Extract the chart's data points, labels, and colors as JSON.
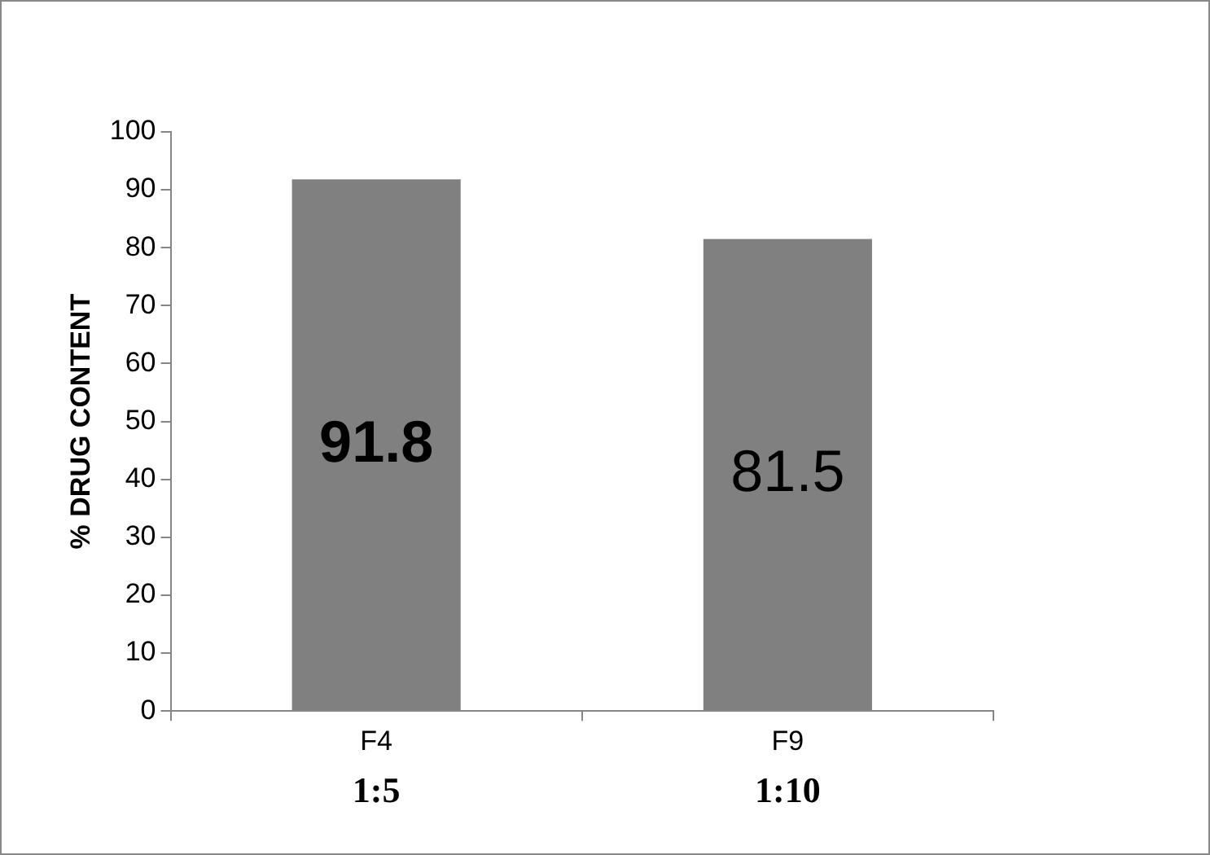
{
  "chart_data": {
    "type": "bar",
    "ylabel": "% DRUG CONTENT",
    "categories": [
      "F4",
      "F9"
    ],
    "values": [
      91.8,
      81.5
    ],
    "color": "#808080",
    "ylim": [
      0,
      100
    ],
    "yticks": [
      0,
      10,
      20,
      30,
      40,
      50,
      60,
      70,
      80,
      90,
      100
    ],
    "grid": false,
    "legend": false,
    "data_labels": true,
    "annotations": [
      "1:5",
      "1:10"
    ]
  }
}
